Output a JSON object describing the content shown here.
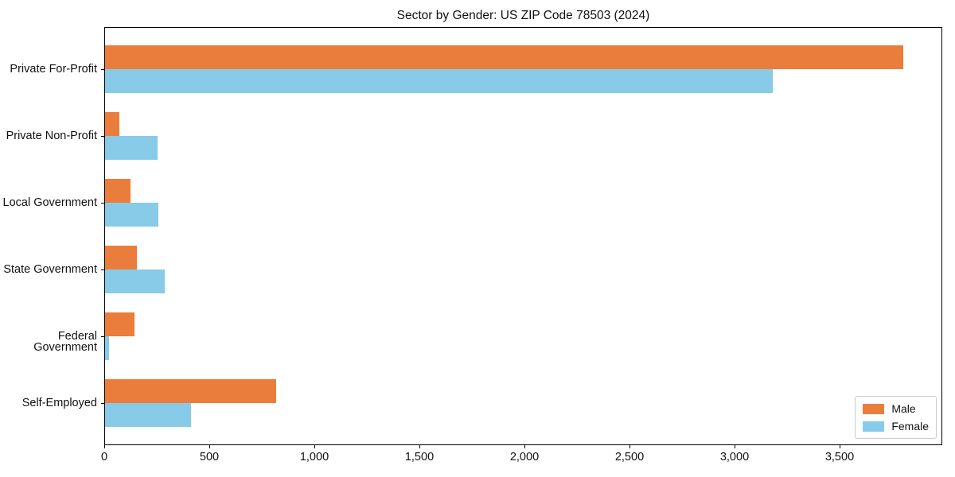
{
  "title": "Sector by Gender: US ZIP Code 78503 (2024)",
  "colors": {
    "male": "#eb7d3c",
    "female": "#87cbe8",
    "axis": "#000000",
    "background": "#ffffff",
    "legend_border": "#cccccc"
  },
  "chart_data": {
    "type": "bar",
    "orientation": "horizontal",
    "title": "Sector by Gender: US ZIP Code 78503 (2024)",
    "categories": [
      "Private For-Profit",
      "Private Non-Profit",
      "Local Government",
      "State Government",
      "Federal Government",
      "Self-Employed"
    ],
    "series": [
      {
        "name": "Male",
        "color": "#eb7d3c",
        "values": [
          3800,
          70,
          120,
          150,
          140,
          815
        ]
      },
      {
        "name": "Female",
        "color": "#87cbe8",
        "values": [
          3180,
          250,
          255,
          285,
          20,
          410
        ]
      }
    ],
    "xlabel": "",
    "ylabel": "",
    "xlim": [
      0,
      3990
    ],
    "xticks": [
      0,
      500,
      1000,
      1500,
      2000,
      2500,
      3000,
      3500
    ],
    "xtick_labels": [
      "0",
      "500",
      "1,000",
      "1,500",
      "2,000",
      "2,500",
      "3,000",
      "3,500"
    ],
    "grid": false,
    "legend": {
      "position": "lower right"
    }
  }
}
